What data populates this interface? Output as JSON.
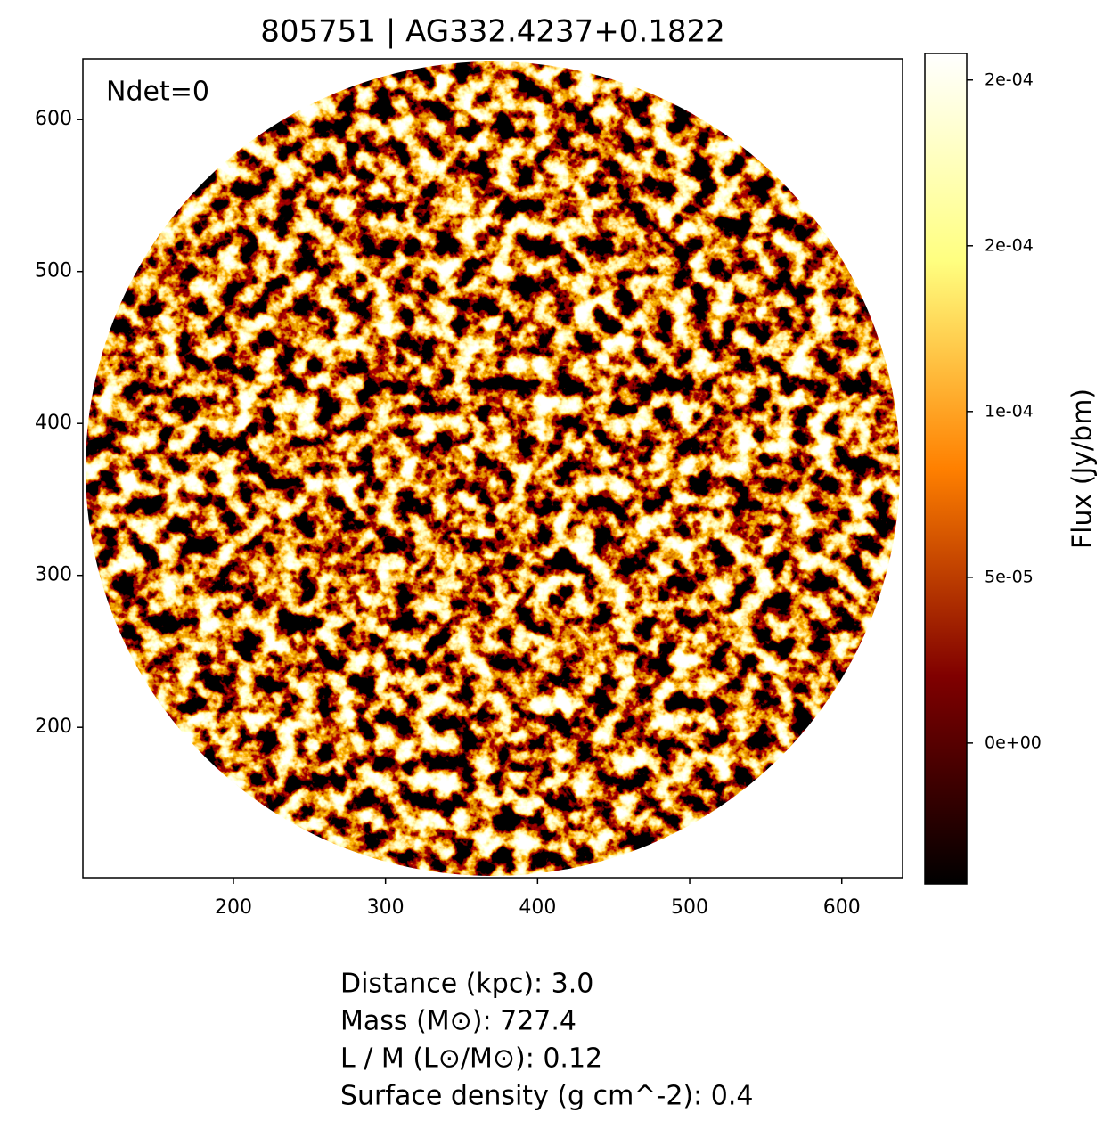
{
  "chart_data": {
    "type": "image",
    "title": "805751 | AG332.4237+0.1822",
    "annotation": "Ndet=0",
    "xlim": [
      101,
      640
    ],
    "ylim": [
      101,
      640
    ],
    "xticks": [
      200,
      300,
      400,
      500,
      600
    ],
    "yticks": [
      200,
      300,
      400,
      500,
      600
    ],
    "colormap": "afmhot",
    "colorbar": {
      "label": "Flux (Jy/bm)",
      "lim": [
        -4.25e-05,
        0.000208
      ],
      "ticks": [
        {
          "value": 0,
          "label": "0e+00"
        },
        {
          "value": 5e-05,
          "label": "5e-05"
        },
        {
          "value": 0.0001,
          "label": "1e-04"
        },
        {
          "value": 0.00015,
          "label": "2e-04"
        },
        {
          "value": 0.0002,
          "label": "2e-04"
        }
      ]
    },
    "info_lines": [
      "Distance (kpc): 3.0",
      "Mass (M⊙): 727.4",
      "L / M (L⊙/M⊙): 0.12",
      "Surface density (g cm^-2): 0.4"
    ]
  }
}
